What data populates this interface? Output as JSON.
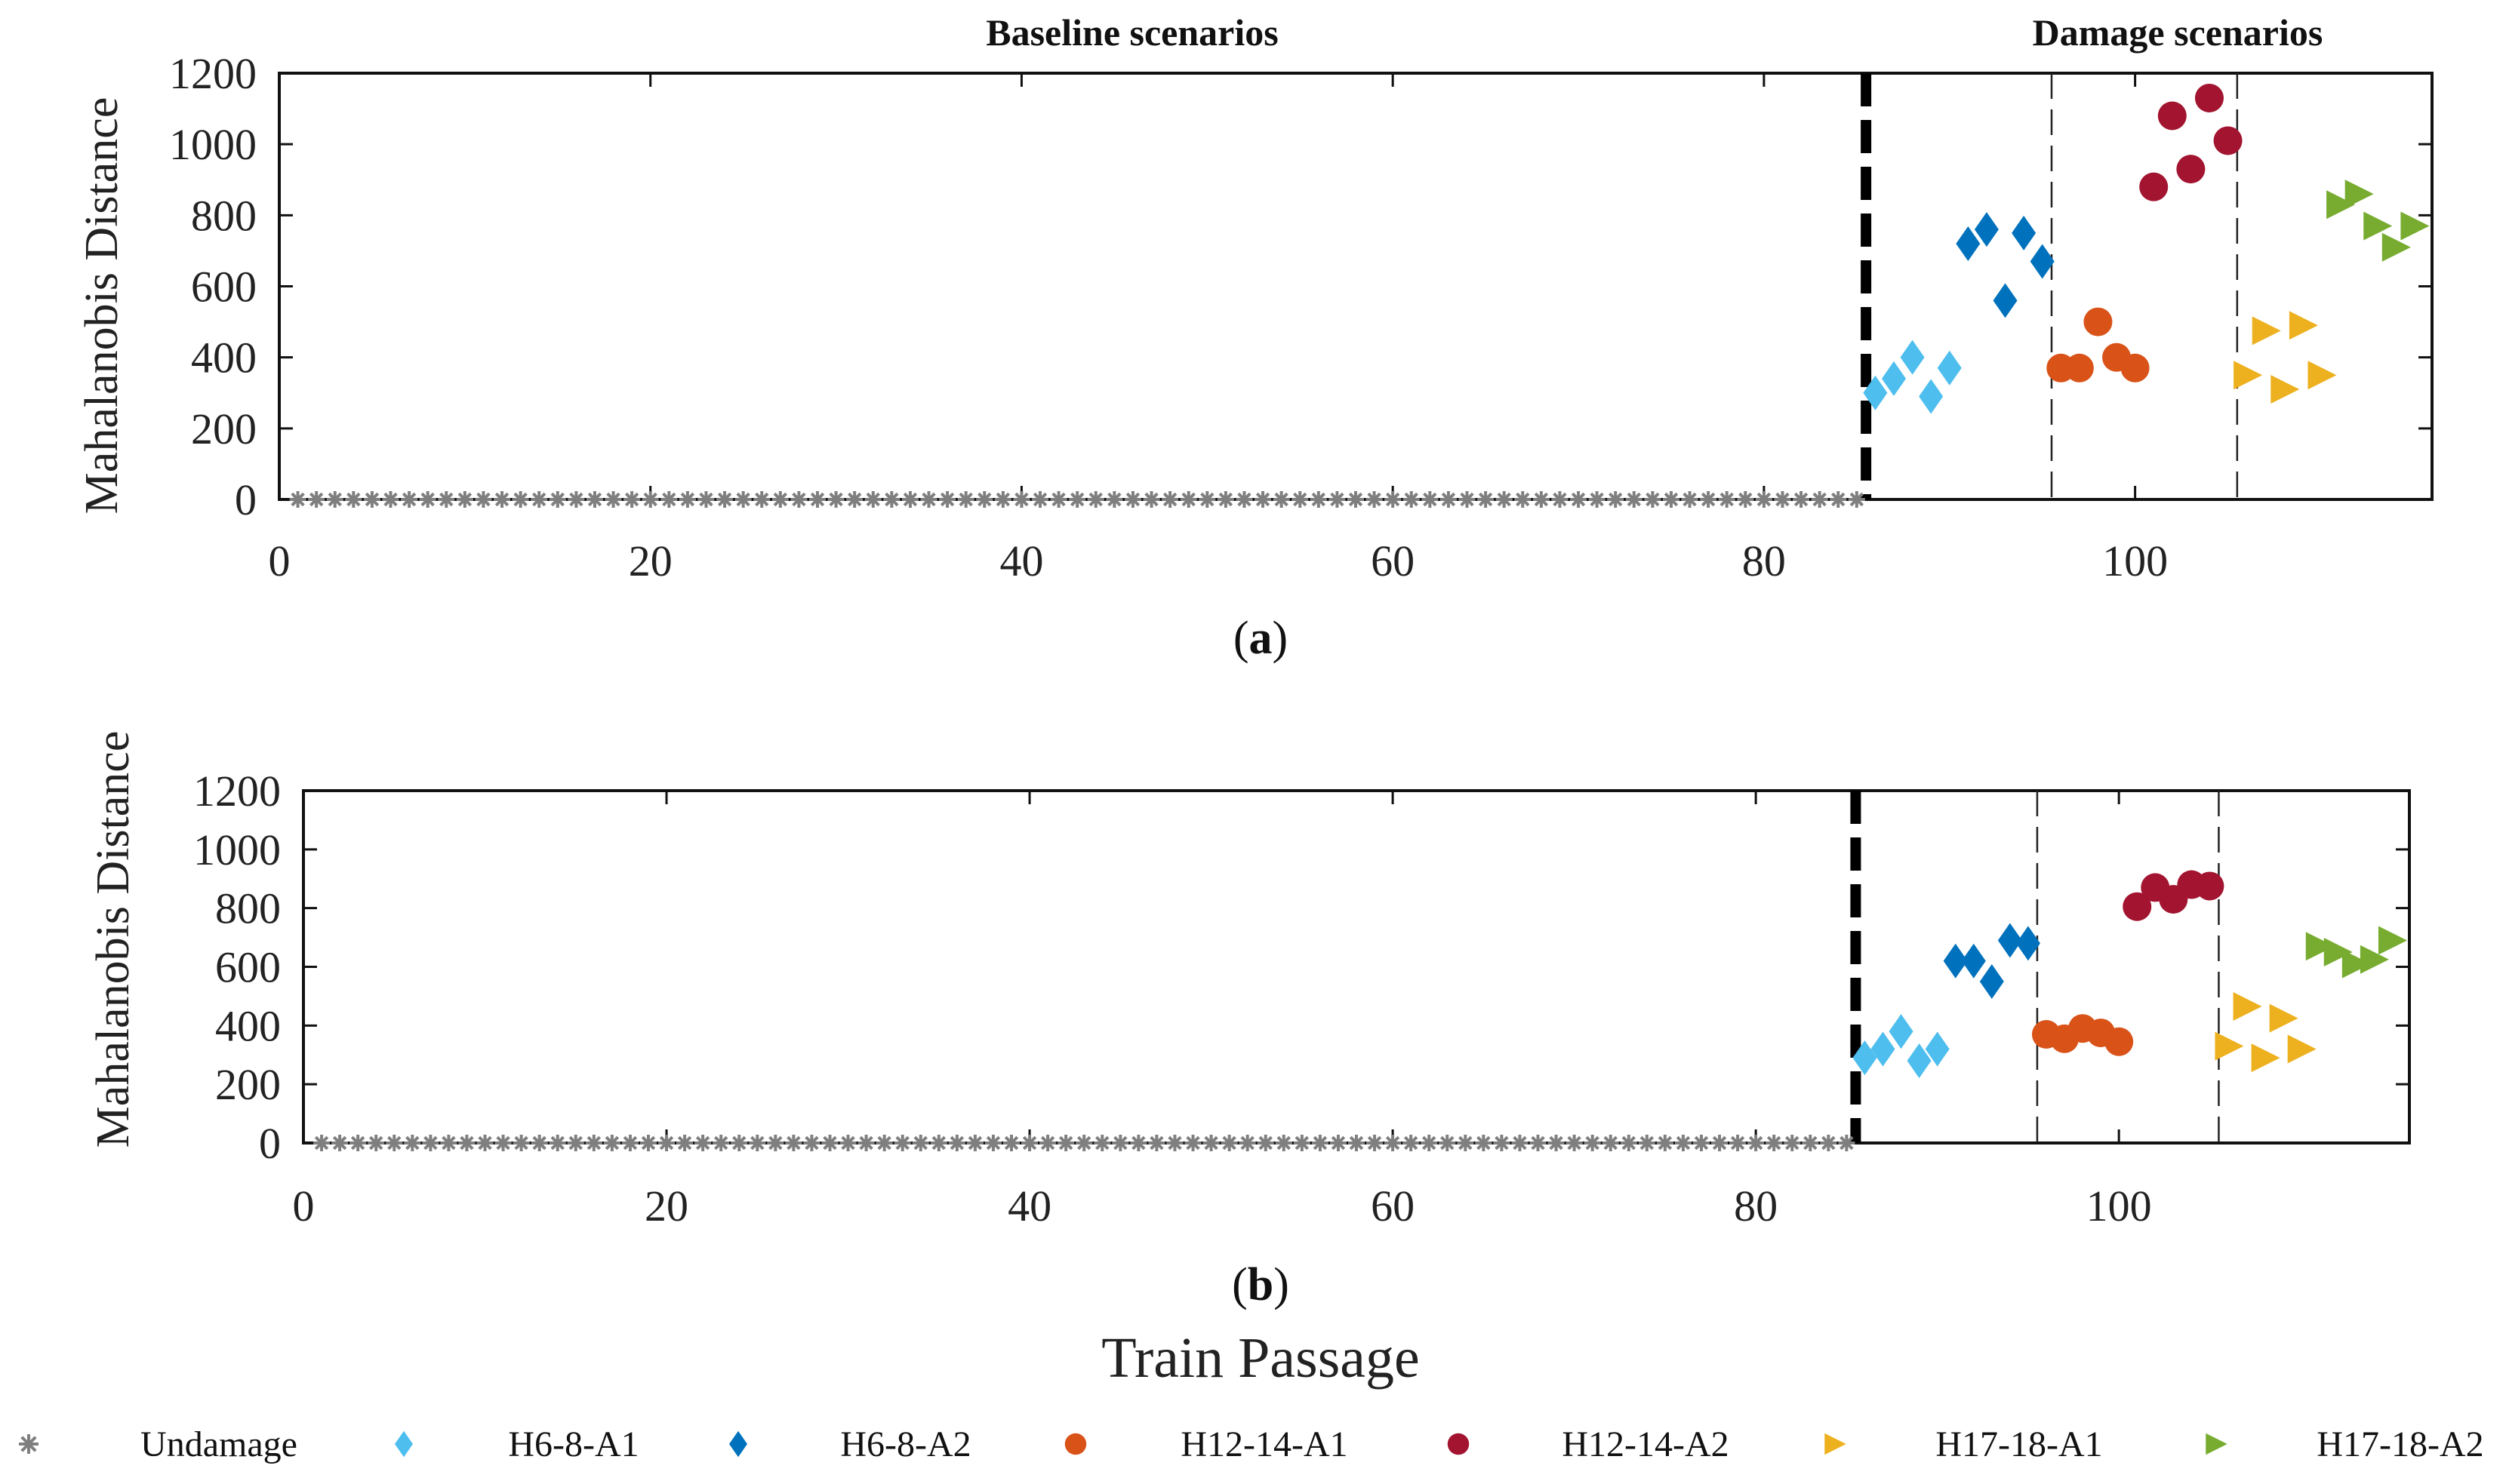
{
  "chart_data": {
    "type": "scatter",
    "xlabel": "Train Passage",
    "legend_position": "bottom",
    "colors": {
      "Undamage": "#7f7f7f",
      "H6-8-A1": "#4dbeee",
      "H6-8-A2": "#0072bd",
      "H12-14-A1": "#d95319",
      "H12-14-A2": "#a2142f",
      "H17-18-A1": "#edb120",
      "H17-18-A2": "#77ac30"
    },
    "legend": [
      {
        "name": "Undamage",
        "marker": "star"
      },
      {
        "name": "H6-8-A1",
        "marker": "diamond"
      },
      {
        "name": "H6-8-A2",
        "marker": "diamond"
      },
      {
        "name": "H12-14-A1",
        "marker": "circle"
      },
      {
        "name": "H12-14-A2",
        "marker": "circle"
      },
      {
        "name": "H17-18-A1",
        "marker": "triangle-right"
      },
      {
        "name": "H17-18-A2",
        "marker": "triangle-right"
      }
    ],
    "panels": [
      {
        "caption_letter": "a",
        "ylabel": "Mahalanobis Distance",
        "baseline_label": "Baseline scenarios",
        "damage_label": "Damage scenarios",
        "xlim": [
          0,
          116
        ],
        "ylim": [
          0,
          1200
        ],
        "xticks": [
          "0",
          "20",
          "40",
          "60",
          "80",
          "100"
        ],
        "yticks": [
          "0",
          "200",
          "400",
          "600",
          "800",
          "1000",
          "1200"
        ],
        "boundary_x": 85.5,
        "divider_x": [
          95.5,
          105.5
        ],
        "series": [
          {
            "name": "Undamage",
            "start": 1,
            "end": 85,
            "y": 0
          },
          {
            "name": "H6-8-A1",
            "x": [
              86,
              87,
              88,
              89,
              90
            ],
            "y": [
              300,
              340,
              400,
              290,
              370
            ]
          },
          {
            "name": "H6-8-A2",
            "x": [
              91,
              92,
              93,
              94,
              95
            ],
            "y": [
              720,
              760,
              560,
              750,
              670
            ]
          },
          {
            "name": "H12-14-A1",
            "x": [
              96,
              97,
              98,
              99,
              100
            ],
            "y": [
              370,
              370,
              500,
              400,
              370
            ]
          },
          {
            "name": "H12-14-A2",
            "x": [
              101,
              102,
              103,
              104,
              105
            ],
            "y": [
              880,
              1080,
              930,
              1130,
              1010
            ]
          },
          {
            "name": "H17-18-A1",
            "x": [
              106,
              107,
              108,
              109,
              110
            ],
            "y": [
              350,
              475,
              310,
              490,
              350
            ]
          },
          {
            "name": "H17-18-A2",
            "x": [
              111,
              112,
              113,
              114,
              115
            ],
            "y": [
              830,
              860,
              770,
              710,
              770
            ]
          }
        ]
      },
      {
        "caption_letter": "b",
        "ylabel": "Mahalanobis Distance",
        "xlim": [
          0,
          116
        ],
        "ylim": [
          0,
          1200
        ],
        "xticks": [
          "0",
          "20",
          "40",
          "60",
          "80",
          "100"
        ],
        "yticks": [
          "0",
          "200",
          "400",
          "600",
          "800",
          "1000",
          "1200"
        ],
        "boundary_x": 85.5,
        "divider_x": [
          95.5,
          105.5
        ],
        "series": [
          {
            "name": "Undamage",
            "start": 1,
            "end": 85,
            "y": 0
          },
          {
            "name": "H6-8-A1",
            "x": [
              86,
              87,
              88,
              89,
              90
            ],
            "y": [
              290,
              320,
              380,
              280,
              320
            ]
          },
          {
            "name": "H6-8-A2",
            "x": [
              91,
              92,
              93,
              94,
              95
            ],
            "y": [
              620,
              620,
              550,
              690,
              680
            ]
          },
          {
            "name": "H12-14-A1",
            "x": [
              96,
              97,
              98,
              99,
              100
            ],
            "y": [
              370,
              355,
              390,
              375,
              345
            ]
          },
          {
            "name": "H12-14-A2",
            "x": [
              101,
              102,
              103,
              104,
              105
            ],
            "y": [
              805,
              870,
              830,
              880,
              875
            ]
          },
          {
            "name": "H17-18-A1",
            "x": [
              106,
              107,
              108,
              109,
              110
            ],
            "y": [
              330,
              465,
              290,
              425,
              320
            ]
          },
          {
            "name": "H17-18-A2",
            "x": [
              111,
              112,
              113,
              114,
              115
            ],
            "y": [
              670,
              650,
              610,
              625,
              690
            ]
          }
        ]
      }
    ]
  }
}
